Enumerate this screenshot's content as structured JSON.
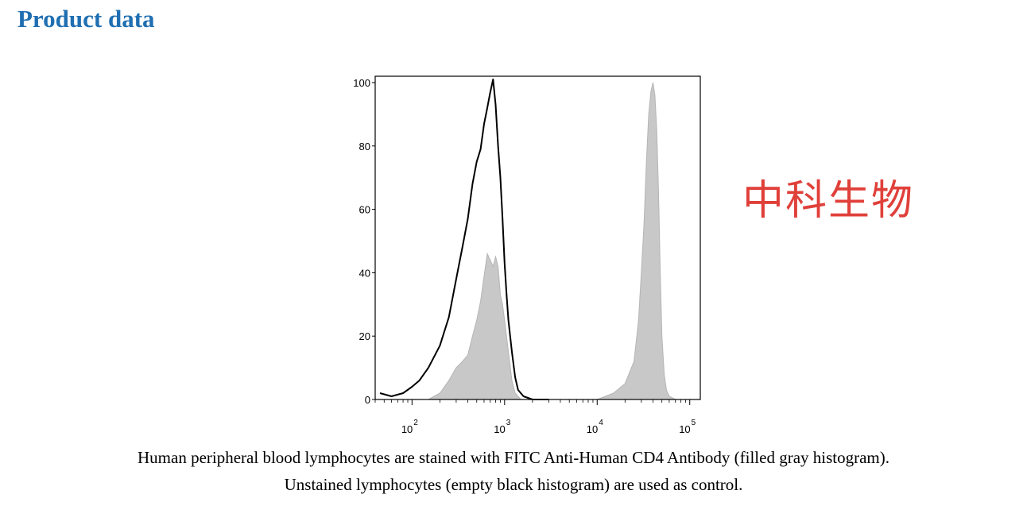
{
  "heading": "Product data",
  "watermark": "中科生物",
  "caption": {
    "line1": "Human peripheral blood lymphocytes are stained with FITC Anti-Human CD4 Antibody (filled gray histogram).",
    "line2": "Unstained lymphocytes (empty black histogram) are used as control."
  },
  "chart_data": {
    "type": "area",
    "title": "",
    "xlabel": "",
    "ylabel": "",
    "x_scale": "log",
    "xlim": [
      40,
      130000
    ],
    "ylim": [
      0,
      102
    ],
    "y_ticks": [
      0,
      20,
      40,
      60,
      80,
      100
    ],
    "x_ticks": [
      {
        "value": 100,
        "base": "10",
        "exp": "2"
      },
      {
        "value": 1000,
        "base": "10",
        "exp": "3"
      },
      {
        "value": 10000,
        "base": "10",
        "exp": "4"
      },
      {
        "value": 100000,
        "base": "10",
        "exp": "5"
      }
    ],
    "grid": false,
    "series": [
      {
        "style": "filled",
        "color": "#c8c8c8",
        "x": [
          150,
          200,
          250,
          300,
          350,
          400,
          450,
          500,
          550,
          600,
          650,
          700,
          750,
          800,
          850,
          900,
          950,
          1000,
          1100,
          1200,
          1300,
          1500,
          3000,
          10000,
          15000,
          20000,
          25000,
          28000,
          30000,
          32000,
          34000,
          36000,
          38000,
          40000,
          42000,
          44000,
          46000,
          48000,
          50000,
          53000,
          56000,
          60000,
          65000,
          70000,
          80000
        ],
        "y": [
          0,
          2,
          6,
          10,
          12,
          14,
          20,
          25,
          31,
          39,
          46,
          44,
          42,
          45,
          42,
          33,
          30,
          25,
          15,
          6,
          2,
          0,
          0,
          0,
          2,
          5,
          12,
          25,
          40,
          55,
          75,
          90,
          97,
          100,
          96,
          85,
          65,
          40,
          20,
          8,
          3,
          1,
          0.5,
          0,
          0
        ]
      },
      {
        "style": "outline",
        "color": "#000000",
        "x": [
          45,
          60,
          80,
          100,
          120,
          150,
          200,
          250,
          300,
          350,
          400,
          450,
          500,
          550,
          600,
          650,
          700,
          750,
          800,
          850,
          900,
          950,
          1000,
          1050,
          1100,
          1200,
          1300,
          1400,
          1600,
          2000,
          3000
        ],
        "y": [
          2,
          1,
          2,
          4,
          6,
          10,
          17,
          26,
          38,
          48,
          57,
          68,
          75,
          79,
          87,
          92,
          97,
          101,
          93,
          80,
          70,
          57,
          43,
          33,
          25,
          15,
          7,
          3,
          1,
          0,
          0
        ]
      }
    ]
  }
}
